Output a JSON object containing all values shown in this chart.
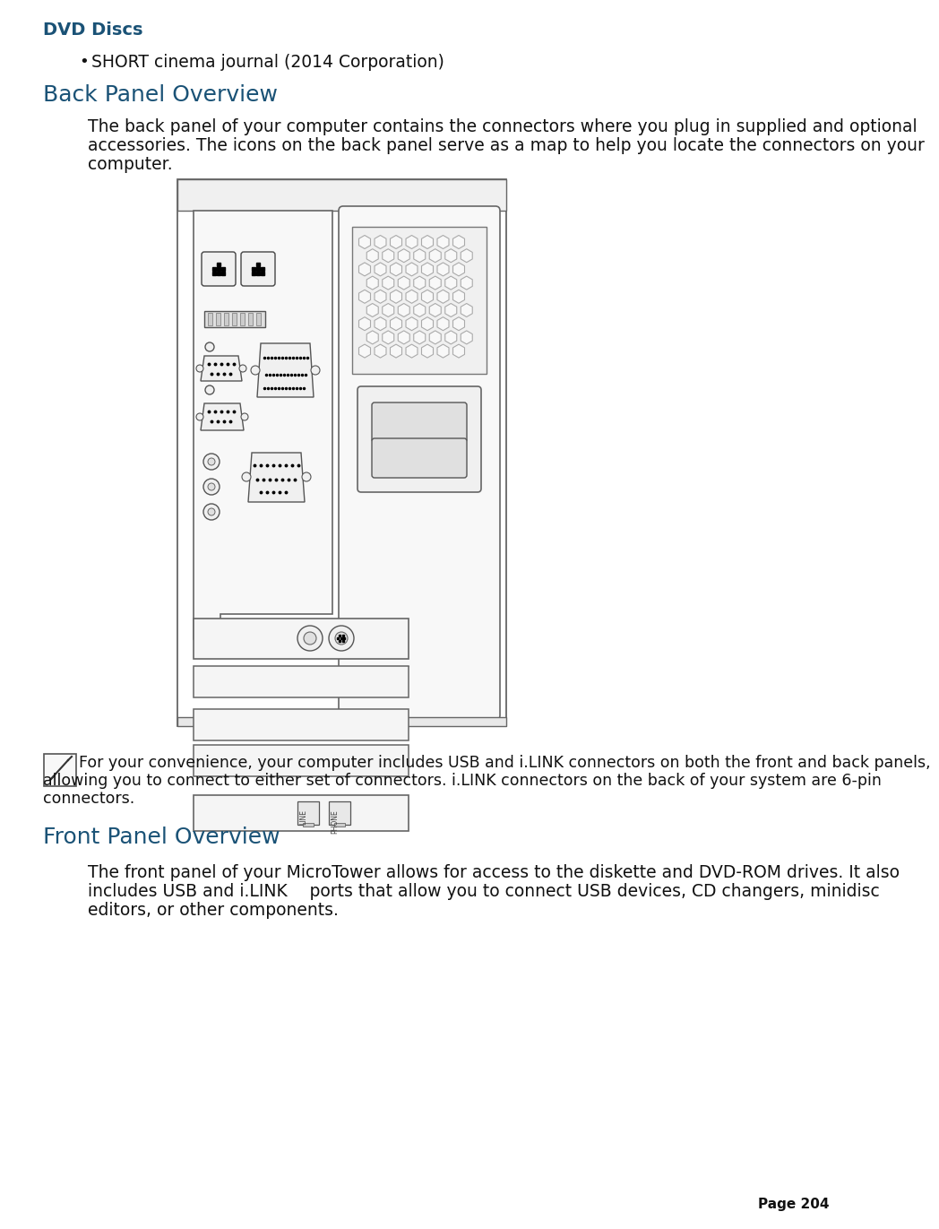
{
  "bg_color": "#ffffff",
  "heading1_text": "DVD Discs",
  "heading1_color": "#1a5276",
  "bullet1_text": "SHORT cinema journal (2014 Corporation)",
  "heading2_text": "Back Panel Overview",
  "heading2_color": "#1a5276",
  "para1_text": "The back panel of your computer contains the connectors where you plug in supplied and optional\naccessories. The icons on the back panel serve as a map to help you locate the connectors on your\ncomputer.",
  "heading3_text": "Front Panel Overview",
  "heading3_color": "#1a5276",
  "para2_text": "The front panel of your MicroTower allows for access to the diskette and DVD-ROM drives. It also\nincludes USB and i.LINK  ports that allow you to connect USB devices, CD changers, minidisc\neditors, or other components.",
  "note_text": "For your convenience, your computer includes USB and i.LINK connectors on both the front and back panels,\nallowing you to connect to either set of connectors. i.LINK connectors on the back of your system are 6-pin\nconnectors.",
  "page_text": "Page 204",
  "body_font_size": 13.5,
  "heading1_font_size": 14,
  "heading2_font_size": 18,
  "note_font_size": 12.5
}
